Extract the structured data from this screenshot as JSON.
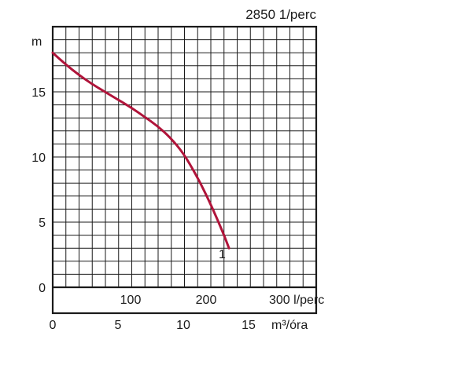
{
  "chart_data": {
    "type": "line",
    "title": "2850 1/perc",
    "ylabel": "m",
    "ylim": [
      0,
      20
    ],
    "yticks": [
      0,
      5,
      10,
      15
    ],
    "x_primary": {
      "unit_label": "m³/óra",
      "ticks": [
        0,
        5,
        10,
        15
      ],
      "range": [
        0,
        20
      ]
    },
    "x_secondary": {
      "unit_label": "l/perc",
      "ticks": [
        100,
        200,
        300
      ],
      "tick_labels": [
        "100",
        "200",
        "300 l/perc"
      ]
    },
    "grid": true,
    "series": [
      {
        "name": "1",
        "color": "#b0143a",
        "points": [
          {
            "x": 0,
            "y": 18
          },
          {
            "x": 1,
            "y": 17.1
          },
          {
            "x": 2,
            "y": 16.3
          },
          {
            "x": 3,
            "y": 15.6
          },
          {
            "x": 4,
            "y": 15.0
          },
          {
            "x": 5,
            "y": 14.4
          },
          {
            "x": 6,
            "y": 13.8
          },
          {
            "x": 7,
            "y": 13.1
          },
          {
            "x": 8,
            "y": 12.4
          },
          {
            "x": 9,
            "y": 11.5
          },
          {
            "x": 10,
            "y": 10.3
          },
          {
            "x": 11,
            "y": 8.6
          },
          {
            "x": 12,
            "y": 6.6
          },
          {
            "x": 13,
            "y": 4.3
          },
          {
            "x": 13.5,
            "y": 3.0
          }
        ]
      }
    ]
  }
}
